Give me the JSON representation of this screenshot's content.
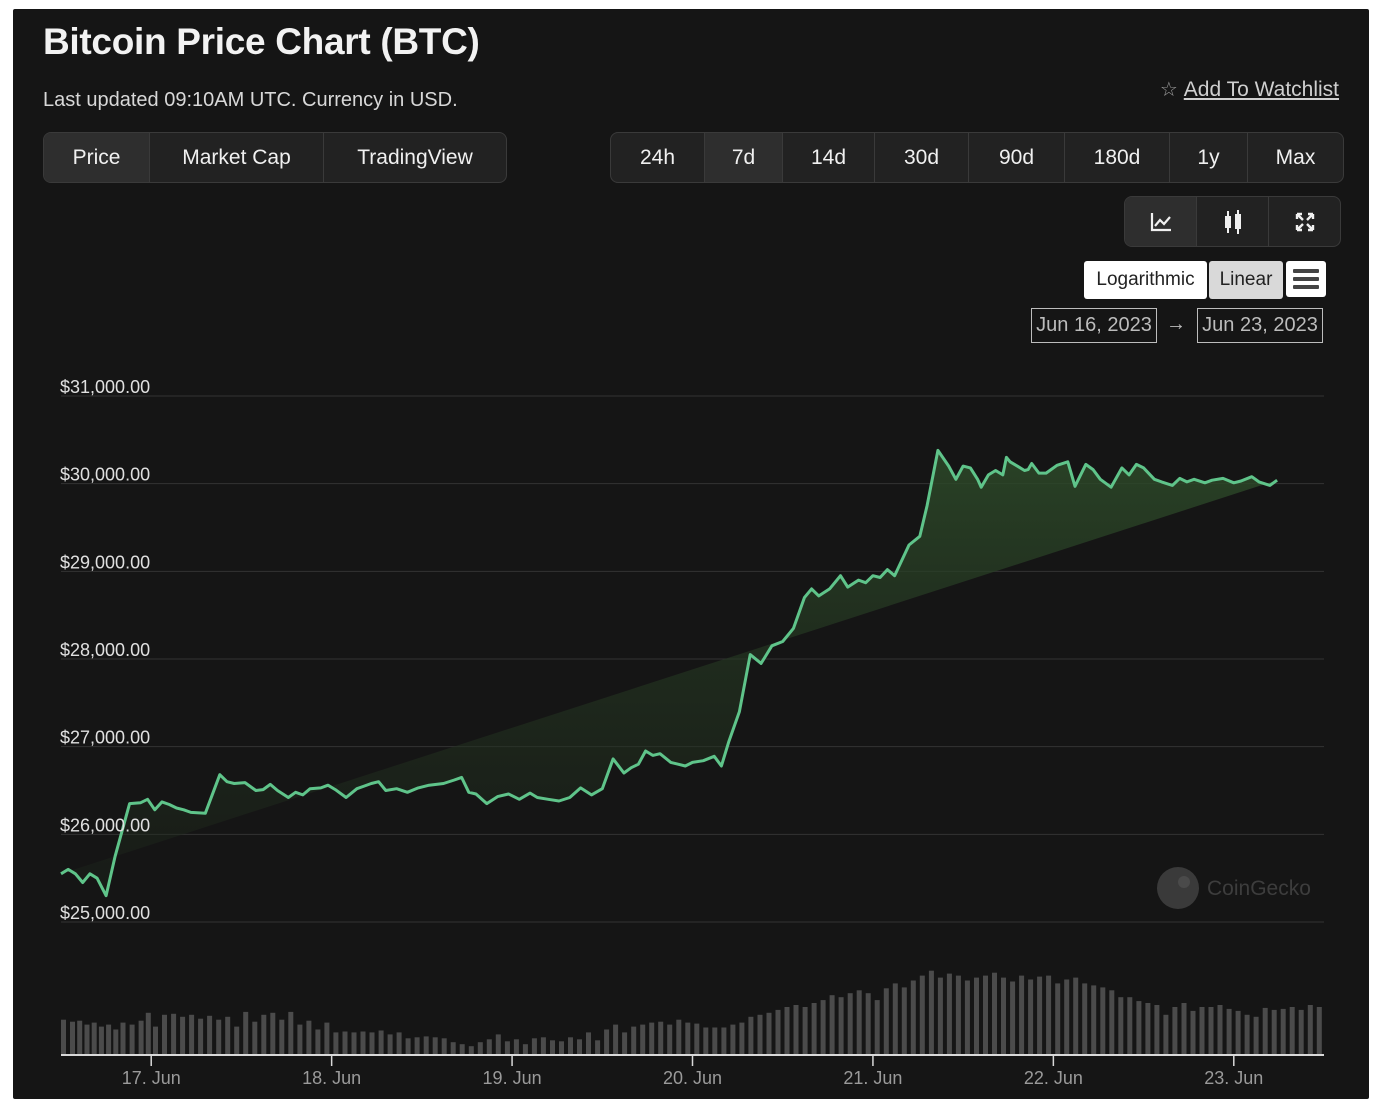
{
  "header": {
    "title": "Bitcoin Price Chart (BTC)",
    "subtitle": "Last updated 09:10AM UTC. Currency in USD.",
    "watchlist_label": "Add To Watchlist",
    "watchlist_icon": "star-icon"
  },
  "chart_type_tabs": [
    {
      "label": "Price",
      "active": true
    },
    {
      "label": "Market Cap",
      "active": false
    },
    {
      "label": "TradingView",
      "active": false
    }
  ],
  "range_tabs": [
    {
      "label": "24h",
      "active": false
    },
    {
      "label": "7d",
      "active": true
    },
    {
      "label": "14d",
      "active": false
    },
    {
      "label": "30d",
      "active": false
    },
    {
      "label": "90d",
      "active": false
    },
    {
      "label": "180d",
      "active": false
    },
    {
      "label": "1y",
      "active": false
    },
    {
      "label": "Max",
      "active": false
    }
  ],
  "tools": {
    "line_icon": "line-chart-icon",
    "candle_icon": "candlestick-icon",
    "fullscreen_icon": "fullscreen-icon"
  },
  "scale": {
    "logarithmic_label": "Logarithmic",
    "linear_label": "Linear",
    "selected": "Linear",
    "menu_icon": "hamburger-menu-icon"
  },
  "date_range": {
    "from": "Jun 16, 2023",
    "arrow": "→",
    "to": "Jun 23, 2023"
  },
  "watermark": "CoinGecko",
  "colors": {
    "line": "#5fc48a",
    "fill_top": "#2c4a2a",
    "volume": "#4b4b4b",
    "grid": "#333333",
    "background": "#151515"
  },
  "chart_data": {
    "type": "area",
    "title": "Bitcoin Price Chart (BTC)",
    "ylabel": "",
    "y_ticks": [
      25000,
      26000,
      27000,
      28000,
      29000,
      30000,
      31000
    ],
    "y_tick_labels": [
      "$25,000.00",
      "$26,000.00",
      "$27,000.00",
      "$28,000.00",
      "$29,000.00",
      "$30,000.00",
      "$31,000.00"
    ],
    "ylim": [
      25000,
      31000
    ],
    "x_tick_labels": [
      "17. Jun",
      "18. Jun",
      "19. Jun",
      "20. Jun",
      "21. Jun",
      "22. Jun",
      "23. Jun"
    ],
    "x_ticks_day": [
      1,
      2,
      3,
      4,
      5,
      6,
      7
    ],
    "xlim_day": [
      0.5,
      7.5
    ],
    "grid": true,
    "legend": "none",
    "series": [
      {
        "kind": "price_line",
        "day": [
          0.5,
          0.54,
          0.58,
          0.62,
          0.66,
          0.7,
          0.75,
          0.8,
          0.88,
          0.94,
          0.98,
          1.02,
          1.06,
          1.1,
          1.14,
          1.18,
          1.22,
          1.3,
          1.38,
          1.42,
          1.46,
          1.52,
          1.58,
          1.62,
          1.66,
          1.7,
          1.76,
          1.8,
          1.84,
          1.88,
          1.94,
          1.98,
          2.02,
          2.08,
          2.14,
          2.18,
          2.22,
          2.26,
          2.3,
          2.36,
          2.42,
          2.48,
          2.54,
          2.62,
          2.68,
          2.72,
          2.76,
          2.8,
          2.86,
          2.92,
          2.98,
          3.04,
          3.1,
          3.14,
          3.2,
          3.26,
          3.32,
          3.38,
          3.44,
          3.5,
          3.56,
          3.62,
          3.66,
          3.7,
          3.74,
          3.78,
          3.82,
          3.88,
          3.92,
          3.96,
          4.0,
          4.06,
          4.12,
          4.16,
          4.2,
          4.26,
          4.32,
          4.38,
          4.44,
          4.5,
          4.56,
          4.62,
          4.66,
          4.7,
          4.76,
          4.82,
          4.86,
          4.92,
          4.96,
          5.0,
          5.04,
          5.08,
          5.12,
          5.2,
          5.26,
          5.3,
          5.36,
          5.42,
          5.46,
          5.5,
          5.54,
          5.58,
          5.6,
          5.64,
          5.68,
          5.72,
          5.74,
          5.76,
          5.8,
          5.84,
          5.86,
          5.88,
          5.92,
          5.96,
          6.02,
          6.08,
          6.12,
          6.18,
          6.22,
          6.26,
          6.32,
          6.38,
          6.42,
          6.46,
          6.5,
          6.56,
          6.6,
          6.66,
          6.7,
          6.74,
          6.78,
          6.84,
          6.88,
          6.94,
          7.0,
          7.04,
          7.1,
          7.14,
          7.2,
          7.24,
          7.3,
          7.34,
          7.4,
          7.44,
          7.5
        ],
        "price": [
          25550,
          25600,
          25550,
          25450,
          25550,
          25500,
          25300,
          25750,
          26350,
          26360,
          26400,
          26280,
          26370,
          26340,
          26300,
          26280,
          26250,
          26240,
          26680,
          26600,
          26580,
          26590,
          26500,
          26510,
          26570,
          26500,
          26420,
          26480,
          26450,
          26520,
          26530,
          26560,
          26510,
          26420,
          26520,
          26550,
          26580,
          26600,
          26500,
          26520,
          26480,
          26530,
          26560,
          26580,
          26620,
          26650,
          26480,
          26460,
          26350,
          26430,
          26460,
          26400,
          26470,
          26420,
          26400,
          26380,
          26420,
          26530,
          26450,
          26520,
          26860,
          26700,
          26760,
          26800,
          26950,
          26900,
          26920,
          26820,
          26800,
          26780,
          26820,
          26840,
          26890,
          26780,
          27050,
          27400,
          28050,
          27950,
          28150,
          28200,
          28350,
          28700,
          28800,
          28720,
          28800,
          28950,
          28820,
          28900,
          28870,
          28950,
          28930,
          29020,
          28950,
          29300,
          29400,
          29750,
          30380,
          30200,
          30050,
          30200,
          30180,
          30050,
          29960,
          30100,
          30150,
          30100,
          30300,
          30250,
          30200,
          30150,
          30160,
          30230,
          30120,
          30120,
          30210,
          30250,
          29970,
          30220,
          30160,
          30050,
          29960,
          30180,
          30100,
          30220,
          30180,
          30050,
          30020,
          29980,
          30060,
          30020,
          30050,
          30010,
          30040,
          30060,
          30010,
          30030,
          30080,
          30020,
          29980,
          30040
        ]
      },
      {
        "kind": "volume_bars",
        "day": [
          0.5,
          0.55,
          0.59,
          0.63,
          0.67,
          0.71,
          0.75,
          0.79,
          0.83,
          0.88,
          0.93,
          0.97,
          1.01,
          1.06,
          1.11,
          1.16,
          1.21,
          1.26,
          1.31,
          1.36,
          1.41,
          1.46,
          1.51,
          1.56,
          1.61,
          1.66,
          1.71,
          1.76,
          1.81,
          1.86,
          1.91,
          1.96,
          2.01,
          2.06,
          2.11,
          2.16,
          2.21,
          2.26,
          2.31,
          2.36,
          2.41,
          2.46,
          2.51,
          2.56,
          2.61,
          2.66,
          2.71,
          2.76,
          2.81,
          2.86,
          2.91,
          2.96,
          3.01,
          3.06,
          3.11,
          3.16,
          3.21,
          3.26,
          3.31,
          3.36,
          3.41,
          3.46,
          3.51,
          3.56,
          3.61,
          3.66,
          3.71,
          3.76,
          3.81,
          3.86,
          3.91,
          3.96,
          4.01,
          4.06,
          4.11,
          4.16,
          4.21,
          4.26,
          4.31,
          4.36,
          4.41,
          4.46,
          4.51,
          4.56,
          4.61,
          4.66,
          4.71,
          4.76,
          4.81,
          4.86,
          4.91,
          4.96,
          5.01,
          5.06,
          5.11,
          5.16,
          5.21,
          5.26,
          5.31,
          5.36,
          5.41,
          5.46,
          5.51,
          5.56,
          5.61,
          5.66,
          5.71,
          5.76,
          5.81,
          5.86,
          5.91,
          5.96,
          6.01,
          6.06,
          6.11,
          6.16,
          6.21,
          6.26,
          6.31,
          6.36,
          6.41,
          6.46,
          6.51,
          6.56,
          6.61,
          6.66,
          6.71,
          6.76,
          6.81,
          6.86,
          6.91,
          6.96,
          7.01,
          7.06,
          7.11,
          7.16,
          7.21,
          7.26,
          7.31,
          7.36,
          7.41,
          7.46
        ],
        "volume": [
          35,
          33,
          34,
          30,
          32,
          28,
          30,
          25,
          32,
          30,
          34,
          42,
          28,
          40,
          41,
          38,
          40,
          36,
          39,
          35,
          38,
          28,
          43,
          33,
          40,
          42,
          35,
          43,
          30,
          34,
          25,
          32,
          22,
          23,
          22,
          23,
          22,
          24,
          20,
          22,
          16,
          17,
          18,
          17,
          16,
          12,
          10,
          8,
          12,
          15,
          20,
          13,
          15,
          10,
          16,
          17,
          14,
          13,
          17,
          15,
          22,
          14,
          25,
          30,
          22,
          28,
          30,
          32,
          33,
          30,
          35,
          32,
          31,
          27,
          27,
          27,
          30,
          32,
          38,
          40,
          42,
          45,
          48,
          50,
          48,
          52,
          55,
          60,
          58,
          62,
          65,
          62,
          55,
          67,
          72,
          68,
          75,
          80,
          85,
          78,
          82,
          80,
          75,
          78,
          80,
          83,
          78,
          74,
          80,
          76,
          79,
          80,
          72,
          76,
          78,
          72,
          70,
          68,
          65,
          58,
          58,
          54,
          52,
          50,
          40,
          48,
          52,
          44,
          48,
          48,
          50,
          46,
          44,
          40,
          38,
          47,
          45,
          46,
          48,
          45,
          50,
          48
        ]
      }
    ]
  }
}
